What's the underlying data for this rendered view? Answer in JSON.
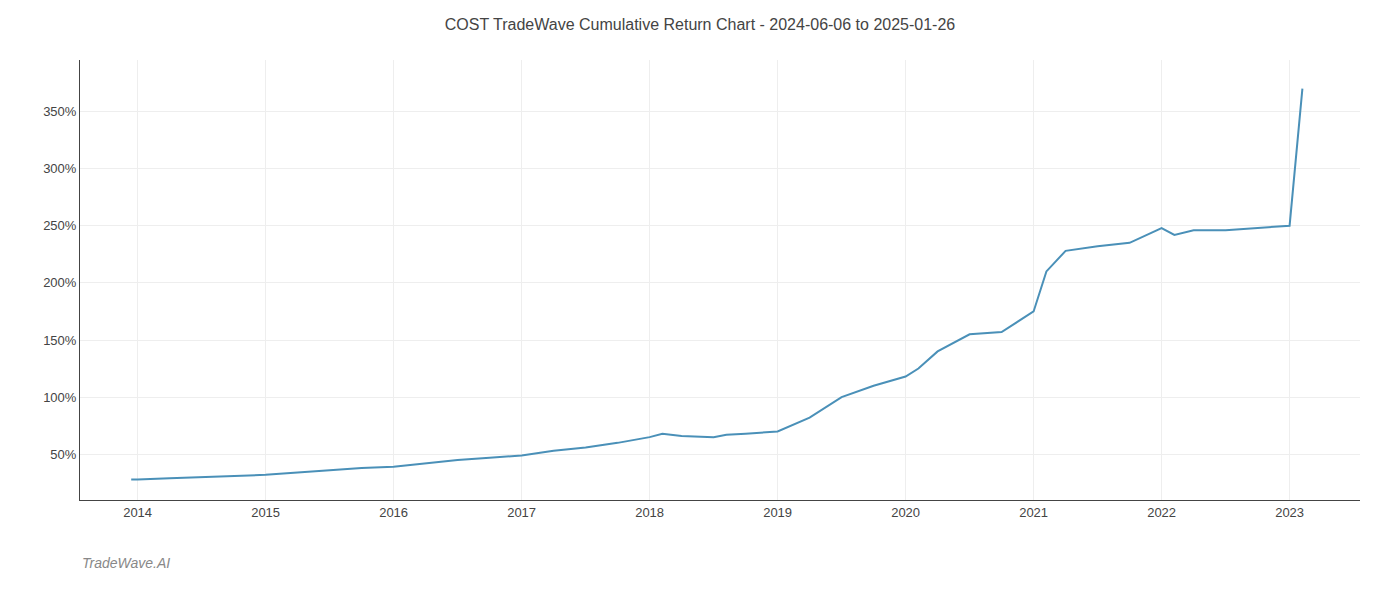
{
  "chart_data": {
    "type": "line",
    "title": "COST TradeWave Cumulative Return Chart - 2024-06-06 to 2025-01-26",
    "annotations": [
      {
        "text": "TradeWave.AI"
      }
    ],
    "x": [
      2013.95,
      2014.0,
      2014.25,
      2014.5,
      2014.75,
      2015.0,
      2015.25,
      2015.5,
      2015.75,
      2016.0,
      2016.25,
      2016.5,
      2016.75,
      2017.0,
      2017.25,
      2017.5,
      2017.75,
      2018.0,
      2018.1,
      2018.25,
      2018.5,
      2018.6,
      2018.75,
      2019.0,
      2019.25,
      2019.5,
      2019.75,
      2020.0,
      2020.1,
      2020.25,
      2020.5,
      2020.75,
      2021.0,
      2021.1,
      2021.25,
      2021.5,
      2021.75,
      2022.0,
      2022.1,
      2022.25,
      2022.5,
      2022.75,
      2023.0,
      2023.1
    ],
    "values": [
      28,
      28,
      29,
      30,
      31,
      32,
      34,
      36,
      38,
      39,
      42,
      45,
      47,
      49,
      53,
      56,
      60,
      65,
      68,
      66,
      65,
      67,
      68,
      70,
      82,
      100,
      110,
      118,
      125,
      140,
      155,
      157,
      175,
      210,
      228,
      232,
      235,
      248,
      242,
      246,
      246,
      248,
      250,
      370
    ],
    "color": "#4a90b8",
    "xlim": [
      2013.55,
      2023.55
    ],
    "xticks": [
      2014,
      2015,
      2016,
      2017,
      2018,
      2019,
      2020,
      2021,
      2022,
      2023
    ],
    "ylim": [
      10,
      395
    ],
    "yticks": [
      {
        "value": 50,
        "label": "50%"
      },
      {
        "value": 100,
        "label": "100%"
      },
      {
        "value": 150,
        "label": "150%"
      },
      {
        "value": 200,
        "label": "200%"
      },
      {
        "value": 250,
        "label": "250%"
      },
      {
        "value": 300,
        "label": "300%"
      },
      {
        "value": 350,
        "label": "350%"
      }
    ],
    "grid": true
  }
}
